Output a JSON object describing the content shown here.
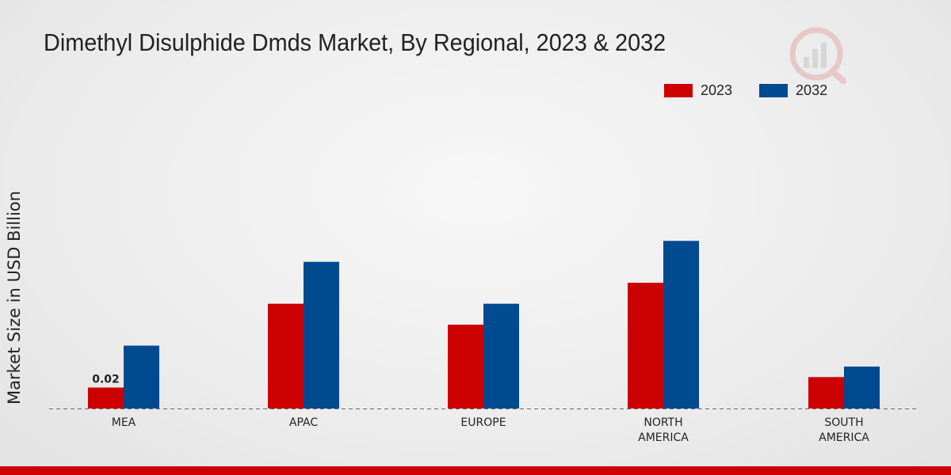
{
  "chart_data": {
    "type": "bar",
    "title": "Dimethyl Disulphide Dmds Market, By Regional, 2023 & 2032",
    "xlabel": "",
    "ylabel": "Market Size in USD Billion",
    "categories": [
      [
        "MEA"
      ],
      [
        "APAC"
      ],
      [
        "EUROPE"
      ],
      [
        "NORTH",
        "AMERICA"
      ],
      [
        "SOUTH",
        "AMERICA"
      ]
    ],
    "series": [
      {
        "name": "2023",
        "color": "#cc0000",
        "values": [
          0.02,
          0.1,
          0.08,
          0.12,
          0.03
        ]
      },
      {
        "name": "2032",
        "color": "#004a8f",
        "values": [
          0.06,
          0.14,
          0.1,
          0.16,
          0.04
        ]
      }
    ],
    "data_labels": [
      {
        "series": 0,
        "index": 0,
        "text": "0.02"
      }
    ],
    "ylim": [
      0,
      0.3
    ],
    "legend": "top-right",
    "grid": false
  }
}
